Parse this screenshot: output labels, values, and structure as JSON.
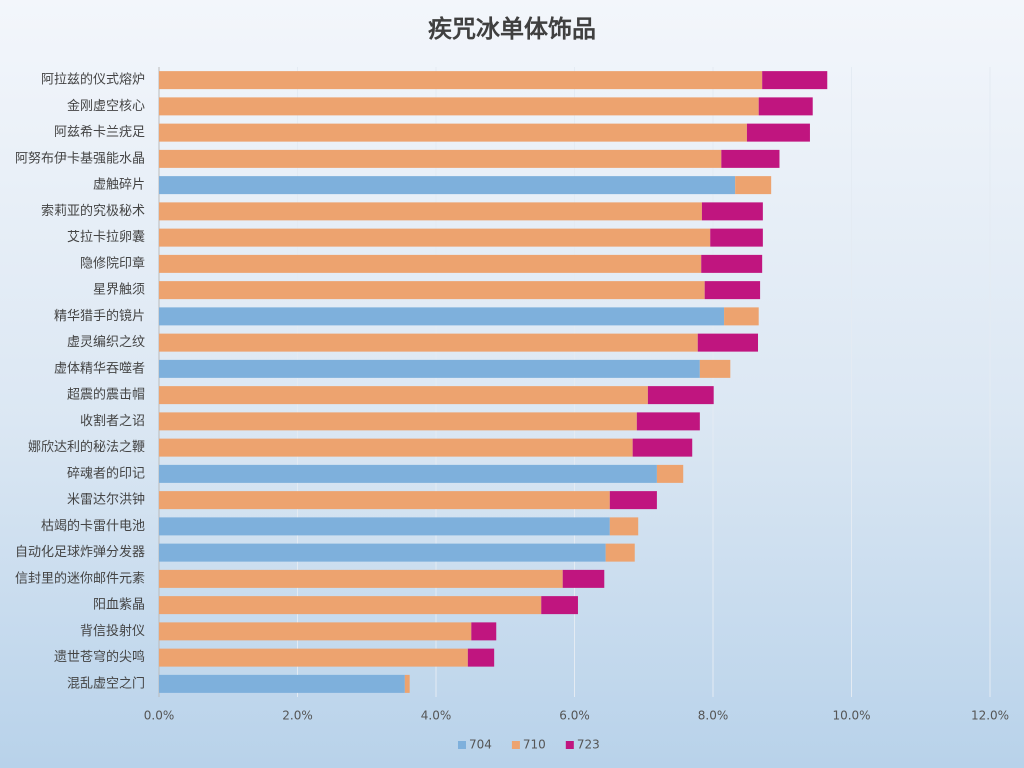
{
  "chart_data": {
    "type": "stacked-barh",
    "title": "疾咒冰单体饰品",
    "categories": [
      "阿拉兹的仪式熔炉",
      "金刚虚空核心",
      "阿兹希卡兰疣足",
      "阿努布伊卡基强能水晶",
      "虚触碎片",
      "索莉亚的究极秘术",
      "艾拉卡拉卵囊",
      "隐修院印章",
      "星界触须",
      "精华猎手的镜片",
      "虚灵编织之纹",
      "虚体精华吞噬者",
      "超震的震击帽",
      "收割者之诏",
      "娜欣达利的秘法之鞭",
      "碎魂者的印记",
      "米雷达尔洪钟",
      "枯竭的卡雷什电池",
      "自动化足球炸弹分发器",
      "信封里的迷你邮件元素",
      "阳血紫晶",
      "背信投射仪",
      "遗世苍穹的尖鸣",
      "混乱虚空之门"
    ],
    "series": [
      {
        "name": "704",
        "color": "#7eb0dc",
        "values": [
          null,
          null,
          null,
          null,
          8.32,
          null,
          null,
          null,
          null,
          8.16,
          null,
          7.81,
          null,
          null,
          null,
          7.19,
          null,
          6.51,
          6.45,
          null,
          null,
          null,
          null,
          3.55
        ]
      },
      {
        "name": "710",
        "color": "#eda36f",
        "values": [
          8.71,
          8.66,
          8.49,
          8.12,
          0.52,
          7.84,
          7.96,
          7.83,
          7.88,
          0.5,
          7.78,
          0.44,
          7.06,
          6.9,
          6.84,
          0.38,
          6.51,
          0.41,
          0.42,
          5.83,
          5.52,
          4.51,
          4.46,
          0.07
        ]
      },
      {
        "name": "723",
        "color": "#c0157f",
        "values": [
          0.94,
          0.78,
          0.91,
          0.84,
          null,
          0.88,
          0.76,
          0.88,
          0.8,
          null,
          0.87,
          null,
          0.95,
          0.91,
          0.86,
          null,
          0.68,
          null,
          null,
          0.6,
          0.53,
          0.36,
          0.38,
          null
        ]
      }
    ],
    "xlim": [
      0,
      12
    ],
    "xticks": [
      {
        "value": 0,
        "label": "0.0%"
      },
      {
        "value": 2,
        "label": "2.0%"
      },
      {
        "value": 4,
        "label": "4.0%"
      },
      {
        "value": 6,
        "label": "6.0%"
      },
      {
        "value": 8,
        "label": "8.0%"
      },
      {
        "value": 10,
        "label": "10.0%"
      },
      {
        "value": 12,
        "label": "12.0%"
      }
    ],
    "grid": true,
    "legend": "bottom"
  }
}
